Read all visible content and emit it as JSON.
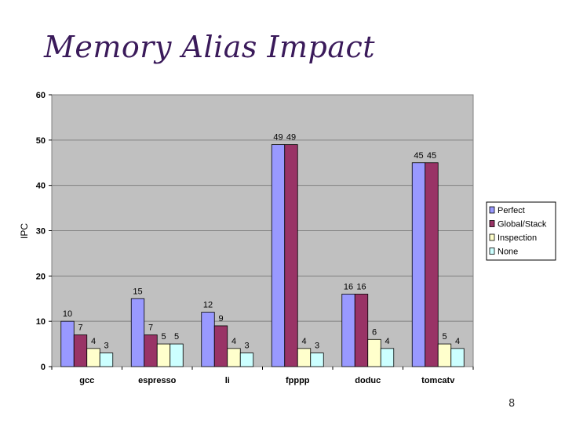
{
  "slide": {
    "title": "Memory Alias Impact",
    "page_number": "8"
  },
  "chart_data": {
    "type": "bar",
    "title": "",
    "xlabel": "",
    "ylabel": "IPC",
    "ylim": [
      0,
      60
    ],
    "yticks": [
      0,
      10,
      20,
      30,
      40,
      50,
      60
    ],
    "grid": true,
    "legend_position": "right",
    "categories": [
      "gcc",
      "espresso",
      "li",
      "fpppp",
      "doduc",
      "tomcatv"
    ],
    "series": [
      {
        "name": "Perfect",
        "color": "#9999ff",
        "values": [
          10,
          15,
          12,
          49,
          16,
          45
        ]
      },
      {
        "name": "Global/Stack",
        "color": "#993366",
        "values": [
          7,
          7,
          9,
          49,
          16,
          45
        ]
      },
      {
        "name": "Inspection",
        "color": "#ffffcc",
        "values": [
          4,
          5,
          4,
          4,
          6,
          5
        ]
      },
      {
        "name": "None",
        "color": "#ccffff",
        "values": [
          3,
          5,
          3,
          3,
          4,
          4
        ]
      }
    ],
    "plot_background": "#c0c0c0"
  }
}
